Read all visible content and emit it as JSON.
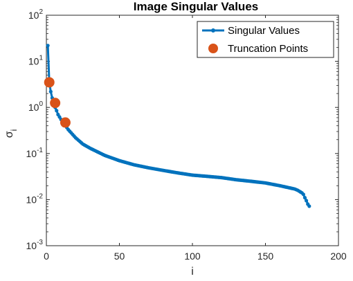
{
  "chart_data": {
    "type": "line",
    "title": "Image Singular Values",
    "xlabel": "i",
    "ylabel_main": "σ",
    "ylabel_sub": "i",
    "xlim": [
      0,
      200
    ],
    "ylim": [
      0.001,
      100
    ],
    "yscale": "log",
    "x_ticks": [
      "0",
      "50",
      "100",
      "150",
      "200"
    ],
    "y_ticks": [
      {
        "base": "10",
        "exp": "-3"
      },
      {
        "base": "10",
        "exp": "-2"
      },
      {
        "base": "10",
        "exp": "-1"
      },
      {
        "base": "10",
        "exp": "0"
      },
      {
        "base": "10",
        "exp": "1"
      },
      {
        "base": "10",
        "exp": "2"
      }
    ],
    "grid": false,
    "legend_position": "top-right",
    "series": [
      {
        "name": "Singular Values",
        "color": "#0072BD",
        "marker": "dot",
        "x": [
          1,
          2,
          3,
          4,
          5,
          6,
          7,
          8,
          10,
          12,
          15,
          20,
          25,
          30,
          40,
          50,
          60,
          70,
          80,
          90,
          100,
          110,
          120,
          130,
          140,
          150,
          160,
          170,
          172,
          175,
          176,
          177,
          178,
          179,
          180
        ],
        "y": [
          22,
          3.5,
          2.2,
          1.6,
          1.3,
          1.0,
          0.85,
          0.7,
          0.55,
          0.45,
          0.33,
          0.22,
          0.16,
          0.13,
          0.091,
          0.07,
          0.057,
          0.049,
          0.043,
          0.038,
          0.034,
          0.032,
          0.03,
          0.027,
          0.025,
          0.023,
          0.02,
          0.017,
          0.016,
          0.014,
          0.013,
          0.011,
          0.0095,
          0.008,
          0.0072
        ]
      },
      {
        "name": "Truncation Points",
        "color": "#D95319",
        "marker": "circle",
        "x": [
          2,
          6,
          13
        ],
        "y": [
          3.5,
          1.25,
          0.47
        ]
      }
    ]
  }
}
